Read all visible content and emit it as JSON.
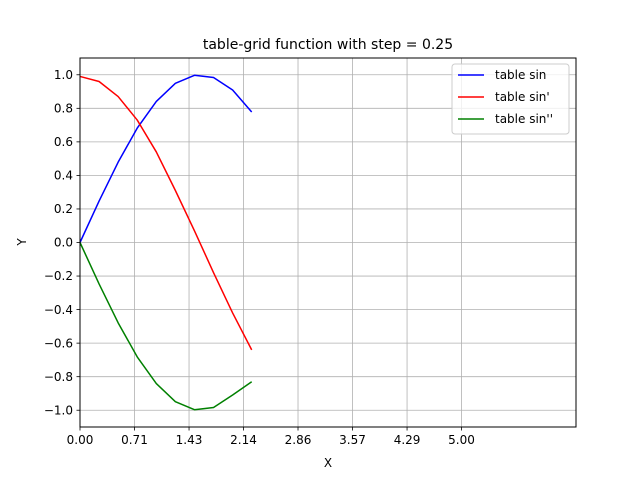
{
  "chart_data": {
    "type": "line",
    "title": "table-grid function with step = 0.25",
    "xlabel": "X",
    "ylabel": "Y",
    "xlim": [
      0,
      6.5
    ],
    "ylim": [
      -1.1,
      1.1
    ],
    "grid": true,
    "legend_position": "top-right",
    "x_ticks": [
      0.0,
      0.714,
      1.429,
      2.143,
      2.857,
      3.571,
      4.286,
      5.0
    ],
    "x_tick_labels": [
      "0.00",
      "0.71",
      "1.43",
      "2.14",
      "2.86",
      "3.57",
      "4.29",
      "5.00"
    ],
    "y_ticks": [
      -1.0,
      -0.8,
      -0.6,
      -0.4,
      -0.2,
      0.0,
      0.2,
      0.4,
      0.6,
      0.8,
      1.0
    ],
    "y_tick_labels": [
      "−1.0",
      "−0.8",
      "−0.6",
      "−0.4",
      "−0.2",
      "0.0",
      "0.2",
      "0.4",
      "0.6",
      "0.8",
      "1.0"
    ],
    "x": [
      0,
      0.25,
      0.5,
      0.75,
      1.0,
      1.25,
      1.5,
      1.75,
      2.0,
      2.25
    ],
    "series": [
      {
        "name": "table sin",
        "color": "#0000ff",
        "values": [
          0.0,
          0.247,
          0.479,
          0.682,
          0.841,
          0.949,
          0.997,
          0.984,
          0.909,
          0.778
        ]
      },
      {
        "name": "table sin'",
        "color": "#ff0000",
        "values": [
          0.99,
          0.96,
          0.87,
          0.73,
          0.54,
          0.31,
          0.07,
          -0.18,
          -0.42,
          -0.64
        ]
      },
      {
        "name": "table sin''",
        "color": "#008000",
        "values": [
          0.0,
          -0.247,
          -0.479,
          -0.682,
          -0.841,
          -0.949,
          -0.997,
          -0.984,
          -0.909,
          -0.83
        ]
      }
    ]
  }
}
